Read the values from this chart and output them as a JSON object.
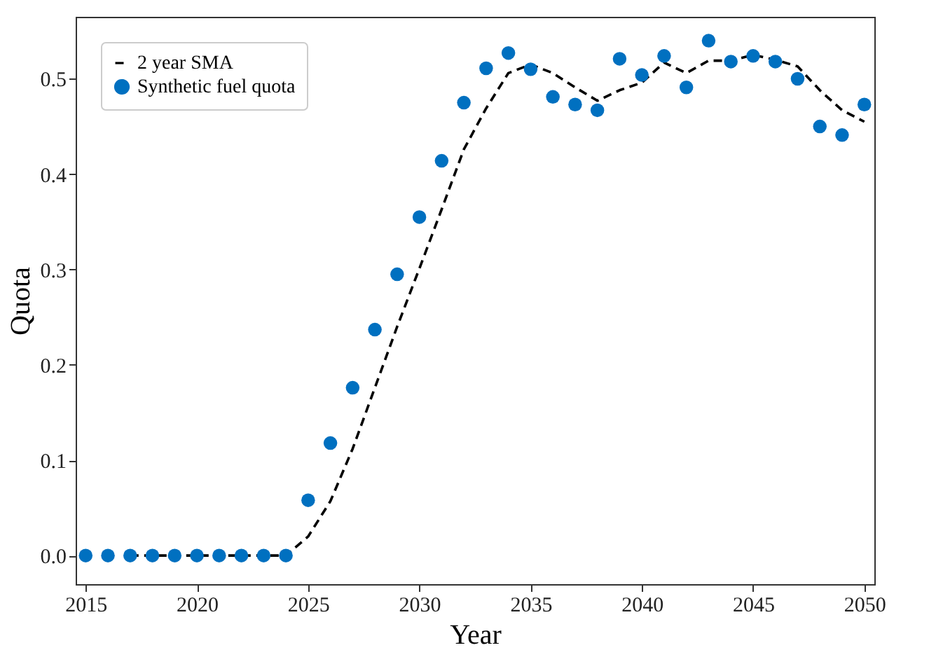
{
  "chart_data": {
    "type": "scatter",
    "xlabel": "Year",
    "ylabel": "Quota",
    "xlim": [
      2014.55,
      2050.45
    ],
    "xticks": [
      2015,
      2020,
      2025,
      2030,
      2035,
      2040,
      2045,
      2050
    ],
    "ylim": [
      -0.03,
      0.565
    ],
    "yticks": [
      {
        "value": 0,
        "label": "0.0"
      },
      0.1,
      0.2,
      0.3,
      0.4,
      0.5
    ],
    "legend": "top left",
    "grid": false,
    "series": [
      {
        "name": "2 year SMA",
        "type": "line",
        "line_style": "dashed",
        "marker": "none",
        "color": "#000000",
        "x": [
          2017,
          2018,
          2019,
          2020,
          2021,
          2022,
          2023,
          2024,
          2025,
          2026,
          2027,
          2028,
          2029,
          2030,
          2031,
          2032,
          2033,
          2034,
          2035,
          2036,
          2037,
          2038,
          2039,
          2040,
          2041,
          2042,
          2043,
          2044,
          2045,
          2046,
          2047,
          2048,
          2049,
          2050
        ],
        "values": [
          0,
          0,
          0,
          0,
          0,
          0,
          0,
          0,
          0.02,
          0.057,
          0.112,
          0.176,
          0.24,
          0.301,
          0.363,
          0.426,
          0.469,
          0.506,
          0.515,
          0.506,
          0.491,
          0.477,
          0.488,
          0.496,
          0.517,
          0.506,
          0.519,
          0.519,
          0.525,
          0.52,
          0.513,
          0.488,
          0.467,
          0.455
        ]
      },
      {
        "name": "Synthetic fuel quota",
        "marker": "circle",
        "color": "#0070c0",
        "x": [
          2015,
          2016,
          2017,
          2018,
          2019,
          2020,
          2021,
          2022,
          2023,
          2024,
          2025,
          2026,
          2027,
          2028,
          2029,
          2030,
          2031,
          2032,
          2033,
          2034,
          2035,
          2036,
          2037,
          2038,
          2039,
          2040,
          2041,
          2042,
          2043,
          2044,
          2045,
          2046,
          2047,
          2048,
          2049,
          2050
        ],
        "values": [
          0,
          0,
          0,
          0,
          0,
          0,
          0,
          0,
          0,
          0,
          0.058,
          0.118,
          0.176,
          0.237,
          0.295,
          0.355,
          0.414,
          0.475,
          0.511,
          0.527,
          0.51,
          0.481,
          0.473,
          0.467,
          0.521,
          0.504,
          0.524,
          0.491,
          0.54,
          0.518,
          0.524,
          0.518,
          0.5,
          0.45,
          0.441,
          0.473
        ]
      }
    ]
  }
}
